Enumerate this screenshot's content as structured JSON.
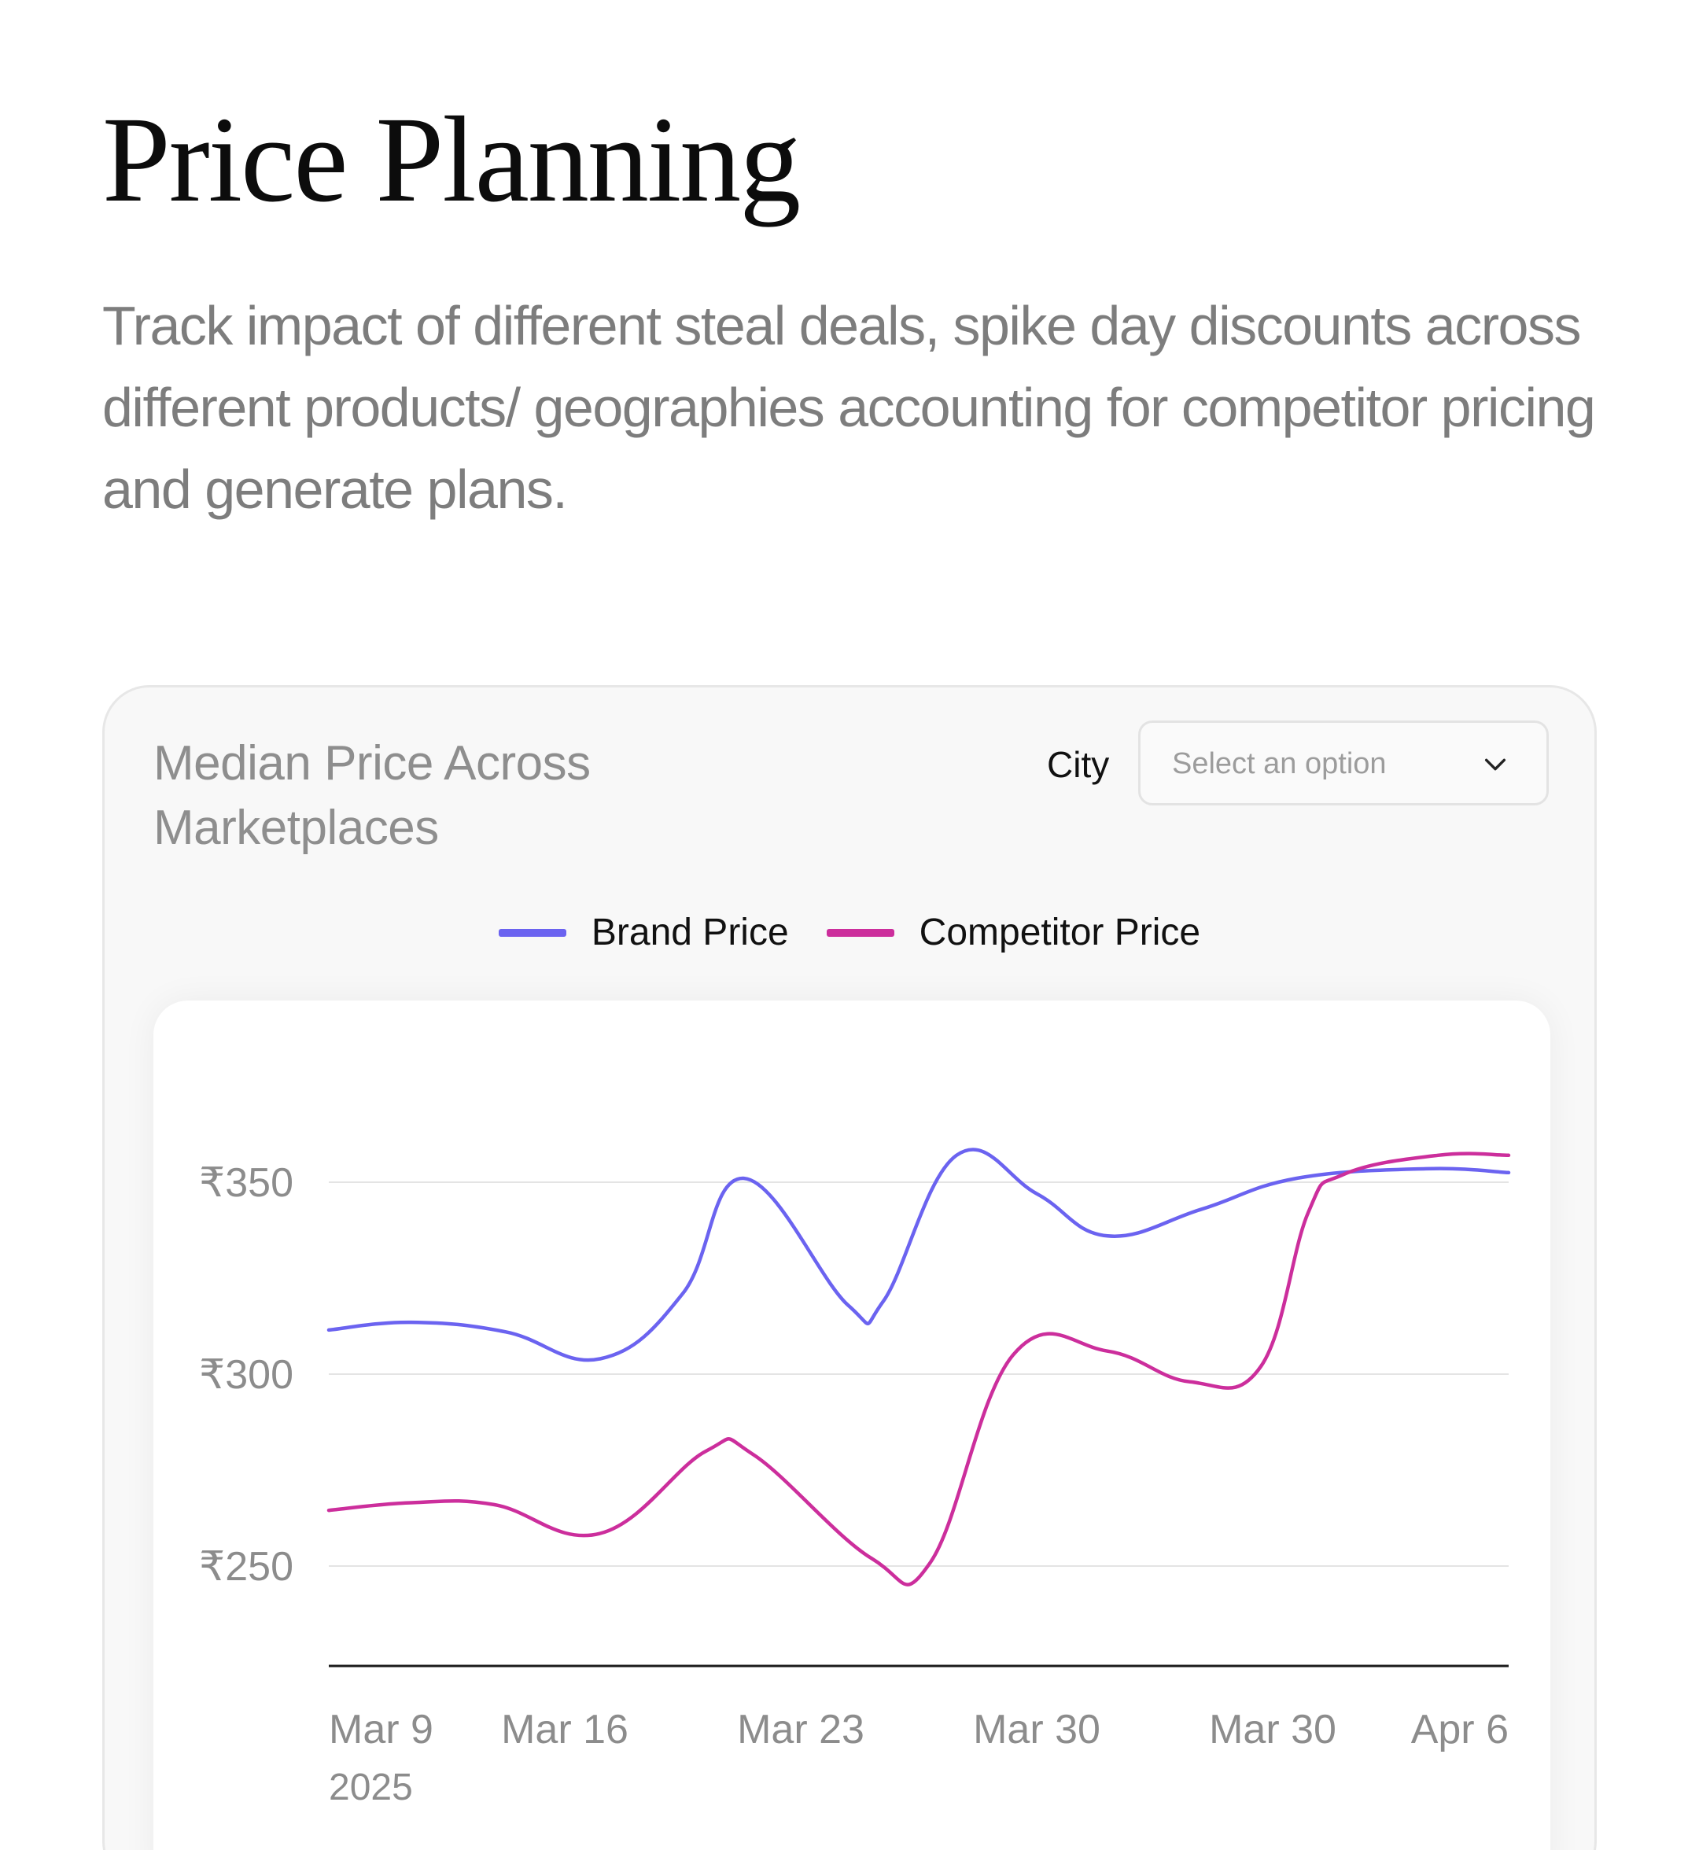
{
  "header": {
    "title": "Price Planning",
    "subtitle": "Track impact of different steal deals, spike day discounts across different products/ geographies accounting for competitor pricing and generate plans."
  },
  "card": {
    "title": "Median Price Across Marketplaces",
    "city_filter": {
      "label": "City",
      "placeholder": "Select an option",
      "icon": "chevron-down-icon"
    }
  },
  "colors": {
    "brand": "#6b63f0",
    "competitor": "#cc2e9c",
    "grid": "#e4e4e4",
    "axis": "#1a1a1a",
    "tick_text": "#8c8c8c"
  },
  "chart_data": {
    "type": "line",
    "title": "Median Price Across Marketplaces",
    "xlabel": "",
    "ylabel": "",
    "ylim": [
      200,
      360
    ],
    "yticks": [
      250,
      300,
      350
    ],
    "ytick_labels": [
      "₹250",
      "₹300",
      "₹350"
    ],
    "x_tick_labels": [
      {
        "label": "Mar 9",
        "sub": "2025"
      },
      {
        "label": "Mar 16",
        "sub": ""
      },
      {
        "label": "Mar 23",
        "sub": ""
      },
      {
        "label": "Mar 30",
        "sub": ""
      },
      {
        "label": "Mar 30",
        "sub": ""
      },
      {
        "label": "Apr 6",
        "sub": ""
      }
    ],
    "grid": true,
    "legend": "top-center",
    "series": [
      {
        "name": "Brand Price",
        "color": "#6b63f0",
        "points": [
          [
            0,
            311.5
          ],
          [
            0.35,
            313.5
          ],
          [
            0.75,
            311
          ],
          [
            1.15,
            304
          ],
          [
            1.5,
            321
          ],
          [
            1.76,
            351
          ],
          [
            2.2,
            318
          ],
          [
            2.35,
            319
          ],
          [
            2.66,
            357
          ],
          [
            3.0,
            347
          ],
          [
            3.3,
            336
          ],
          [
            3.7,
            343
          ],
          [
            4.1,
            351
          ],
          [
            4.65,
            353.5
          ],
          [
            5.0,
            352.5
          ]
        ]
      },
      {
        "name": "Competitor Price",
        "color": "#cc2e9c",
        "points": [
          [
            0,
            264.5
          ],
          [
            0.35,
            266.5
          ],
          [
            0.7,
            266
          ],
          [
            1.15,
            258.5
          ],
          [
            1.6,
            280
          ],
          [
            1.8,
            279
          ],
          [
            2.3,
            252
          ],
          [
            2.55,
            251
          ],
          [
            2.9,
            305
          ],
          [
            3.3,
            306
          ],
          [
            3.65,
            298
          ],
          [
            3.95,
            302
          ],
          [
            4.15,
            342
          ],
          [
            4.3,
            352
          ],
          [
            4.7,
            357
          ],
          [
            5.0,
            357
          ]
        ]
      }
    ]
  }
}
